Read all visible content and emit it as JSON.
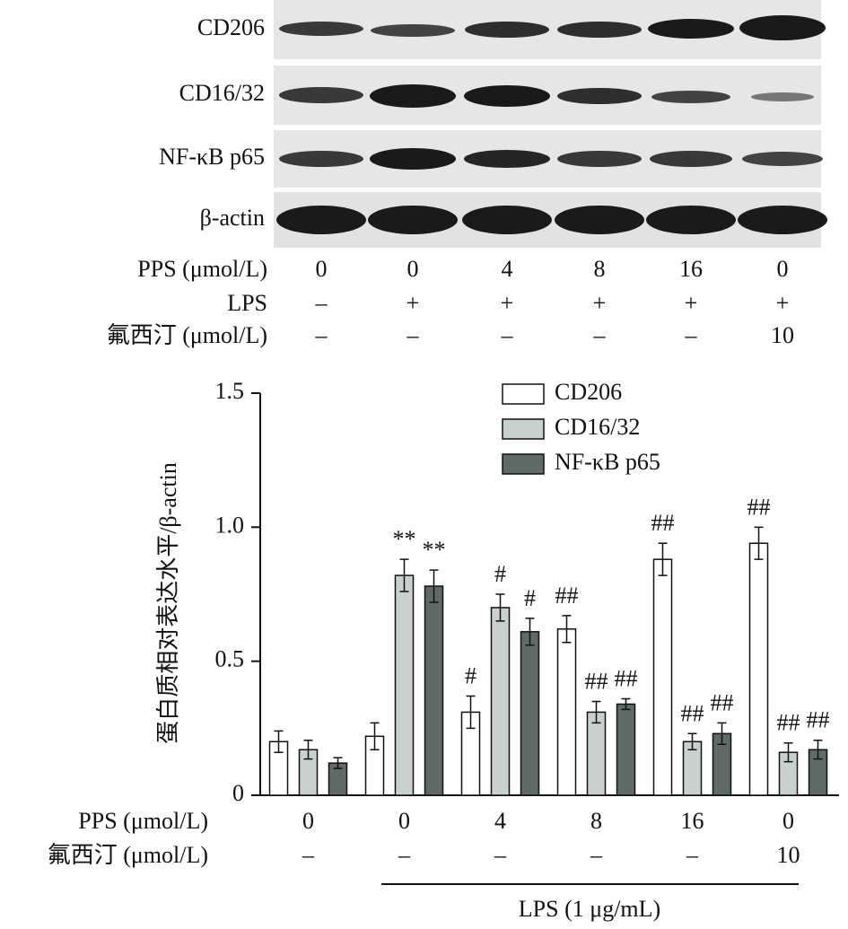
{
  "blot": {
    "bands": [
      "CD206",
      "CD16/32",
      "NF-κB p65",
      "β-actin"
    ],
    "rows": [
      {
        "label": "PPS (μmol/L)",
        "values": [
          "0",
          "0",
          "4",
          "8",
          "16",
          "0"
        ]
      },
      {
        "label": "LPS",
        "values": [
          "–",
          "+",
          "+",
          "+",
          "+",
          "+"
        ]
      },
      {
        "label": "氟西汀 (μmol/L)",
        "values": [
          "–",
          "–",
          "–",
          "–",
          "–",
          "10"
        ]
      }
    ]
  },
  "chart_data": {
    "type": "bar",
    "y_label": "蛋白质相对表达水平/β-actin",
    "categories": [
      "0",
      "0",
      "4",
      "8",
      "16",
      "0"
    ],
    "x_label": "PPS (μmol/L)",
    "x_row2_label": "氟西汀 (μmol/L)",
    "x_row2": [
      "–",
      "–",
      "–",
      "–",
      "–",
      "10"
    ],
    "bracket_label": "LPS (1 μg/mL)",
    "ylim": [
      0,
      1.5
    ],
    "yticks": [
      0,
      0.5,
      {
        "value": 1,
        "label": "1.0"
      },
      1.5
    ],
    "series": [
      {
        "name": "CD206",
        "color": "#ffffff",
        "values": [
          0.2,
          0.22,
          0.31,
          0.62,
          0.88,
          0.94
        ],
        "errors": [
          0.04,
          0.05,
          0.06,
          0.05,
          0.06,
          0.06
        ],
        "annotations": [
          null,
          null,
          "#",
          "##",
          "##",
          "##"
        ]
      },
      {
        "name": "CD16/32",
        "color": "#c9d1cd",
        "values": [
          0.17,
          0.82,
          0.7,
          0.31,
          0.2,
          0.16
        ],
        "errors": [
          0.035,
          0.06,
          0.05,
          0.04,
          0.03,
          0.035
        ],
        "annotations": [
          null,
          "**",
          "#",
          "##",
          "##",
          "##"
        ]
      },
      {
        "name": "NF-κB p65",
        "color": "#5e6b69",
        "values": [
          0.12,
          0.78,
          0.61,
          0.34,
          0.23,
          0.17
        ],
        "errors": [
          0.02,
          0.06,
          0.05,
          0.02,
          0.04,
          0.035
        ],
        "annotations": [
          null,
          "**",
          "#",
          "##",
          "##",
          "##"
        ]
      }
    ]
  }
}
